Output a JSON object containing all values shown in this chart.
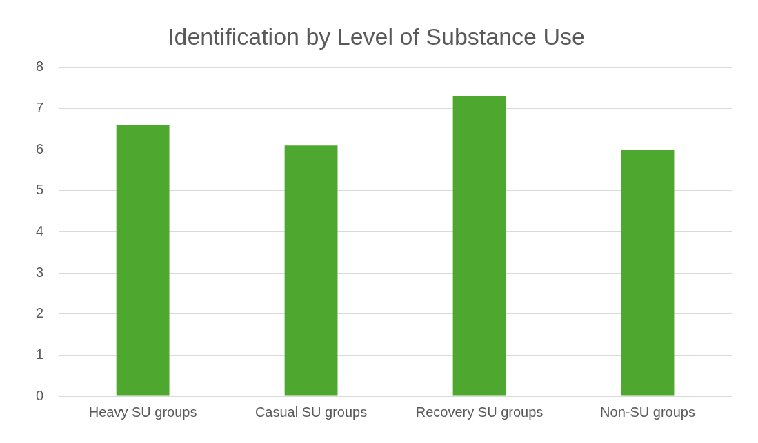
{
  "chart_data": {
    "type": "bar",
    "title": "Identification by Level of Substance Use",
    "categories": [
      "Heavy SU groups",
      "Casual SU groups",
      "Recovery SU groups",
      "Non-SU groups"
    ],
    "values": [
      6.6,
      6.1,
      7.3,
      6.0
    ],
    "color": "#4ea72e",
    "ylim": [
      0,
      8
    ],
    "yticks": [
      0,
      1,
      2,
      3,
      4,
      5,
      6,
      7,
      8
    ],
    "grid": "y"
  }
}
